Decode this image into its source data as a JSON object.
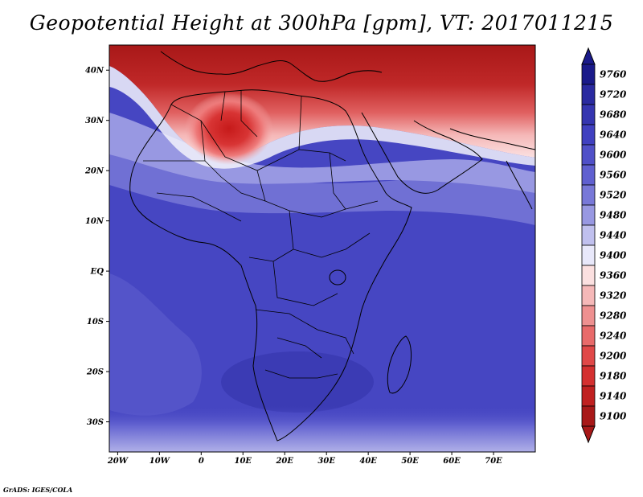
{
  "title": "Geopotential Height at 300hPa [gpm], VT: 2017011215",
  "credit": "GrADS: IGES/COLA",
  "map": {
    "lon_range": [
      -22,
      80
    ],
    "lat_range": [
      -36,
      45
    ],
    "lon_ticks": [
      {
        "value": -20,
        "label": "20W"
      },
      {
        "value": -10,
        "label": "10W"
      },
      {
        "value": 0,
        "label": "0"
      },
      {
        "value": 10,
        "label": "10E"
      },
      {
        "value": 20,
        "label": "20E"
      },
      {
        "value": 30,
        "label": "30E"
      },
      {
        "value": 40,
        "label": "40E"
      },
      {
        "value": 50,
        "label": "50E"
      },
      {
        "value": 60,
        "label": "60E"
      },
      {
        "value": 70,
        "label": "70E"
      }
    ],
    "lat_ticks": [
      {
        "value": 40,
        "label": "40N"
      },
      {
        "value": 30,
        "label": "30N"
      },
      {
        "value": 20,
        "label": "20N"
      },
      {
        "value": 10,
        "label": "10N"
      },
      {
        "value": 0,
        "label": "EQ"
      },
      {
        "value": -10,
        "label": "10S"
      },
      {
        "value": -20,
        "label": "20S"
      },
      {
        "value": -30,
        "label": "30S"
      }
    ]
  },
  "colorbar": {
    "levels": [
      {
        "label": "9760",
        "color": "#1a1a8a"
      },
      {
        "label": "9720",
        "color": "#2a2aa0"
      },
      {
        "label": "9680",
        "color": "#3535b0"
      },
      {
        "label": "9640",
        "color": "#4040c0"
      },
      {
        "label": "9600",
        "color": "#5050c8"
      },
      {
        "label": "9560",
        "color": "#6060d0"
      },
      {
        "label": "9520",
        "color": "#7878d8"
      },
      {
        "label": "9480",
        "color": "#9898e2"
      },
      {
        "label": "9440",
        "color": "#c0c0ee"
      },
      {
        "label": "9400",
        "color": "#e8e8fa"
      },
      {
        "label": "9360",
        "color": "#fbe0e0"
      },
      {
        "label": "9320",
        "color": "#f5b8b8"
      },
      {
        "label": "9280",
        "color": "#ee9090"
      },
      {
        "label": "9240",
        "color": "#e86a6a"
      },
      {
        "label": "9200",
        "color": "#e04848"
      },
      {
        "label": "9180",
        "color": "#d43030"
      },
      {
        "label": "9140",
        "color": "#c02020"
      },
      {
        "label": "9100",
        "color": "#a81818"
      }
    ],
    "top_arrow_color": "#1a1a8a",
    "bottom_arrow_color": "#a81818"
  }
}
